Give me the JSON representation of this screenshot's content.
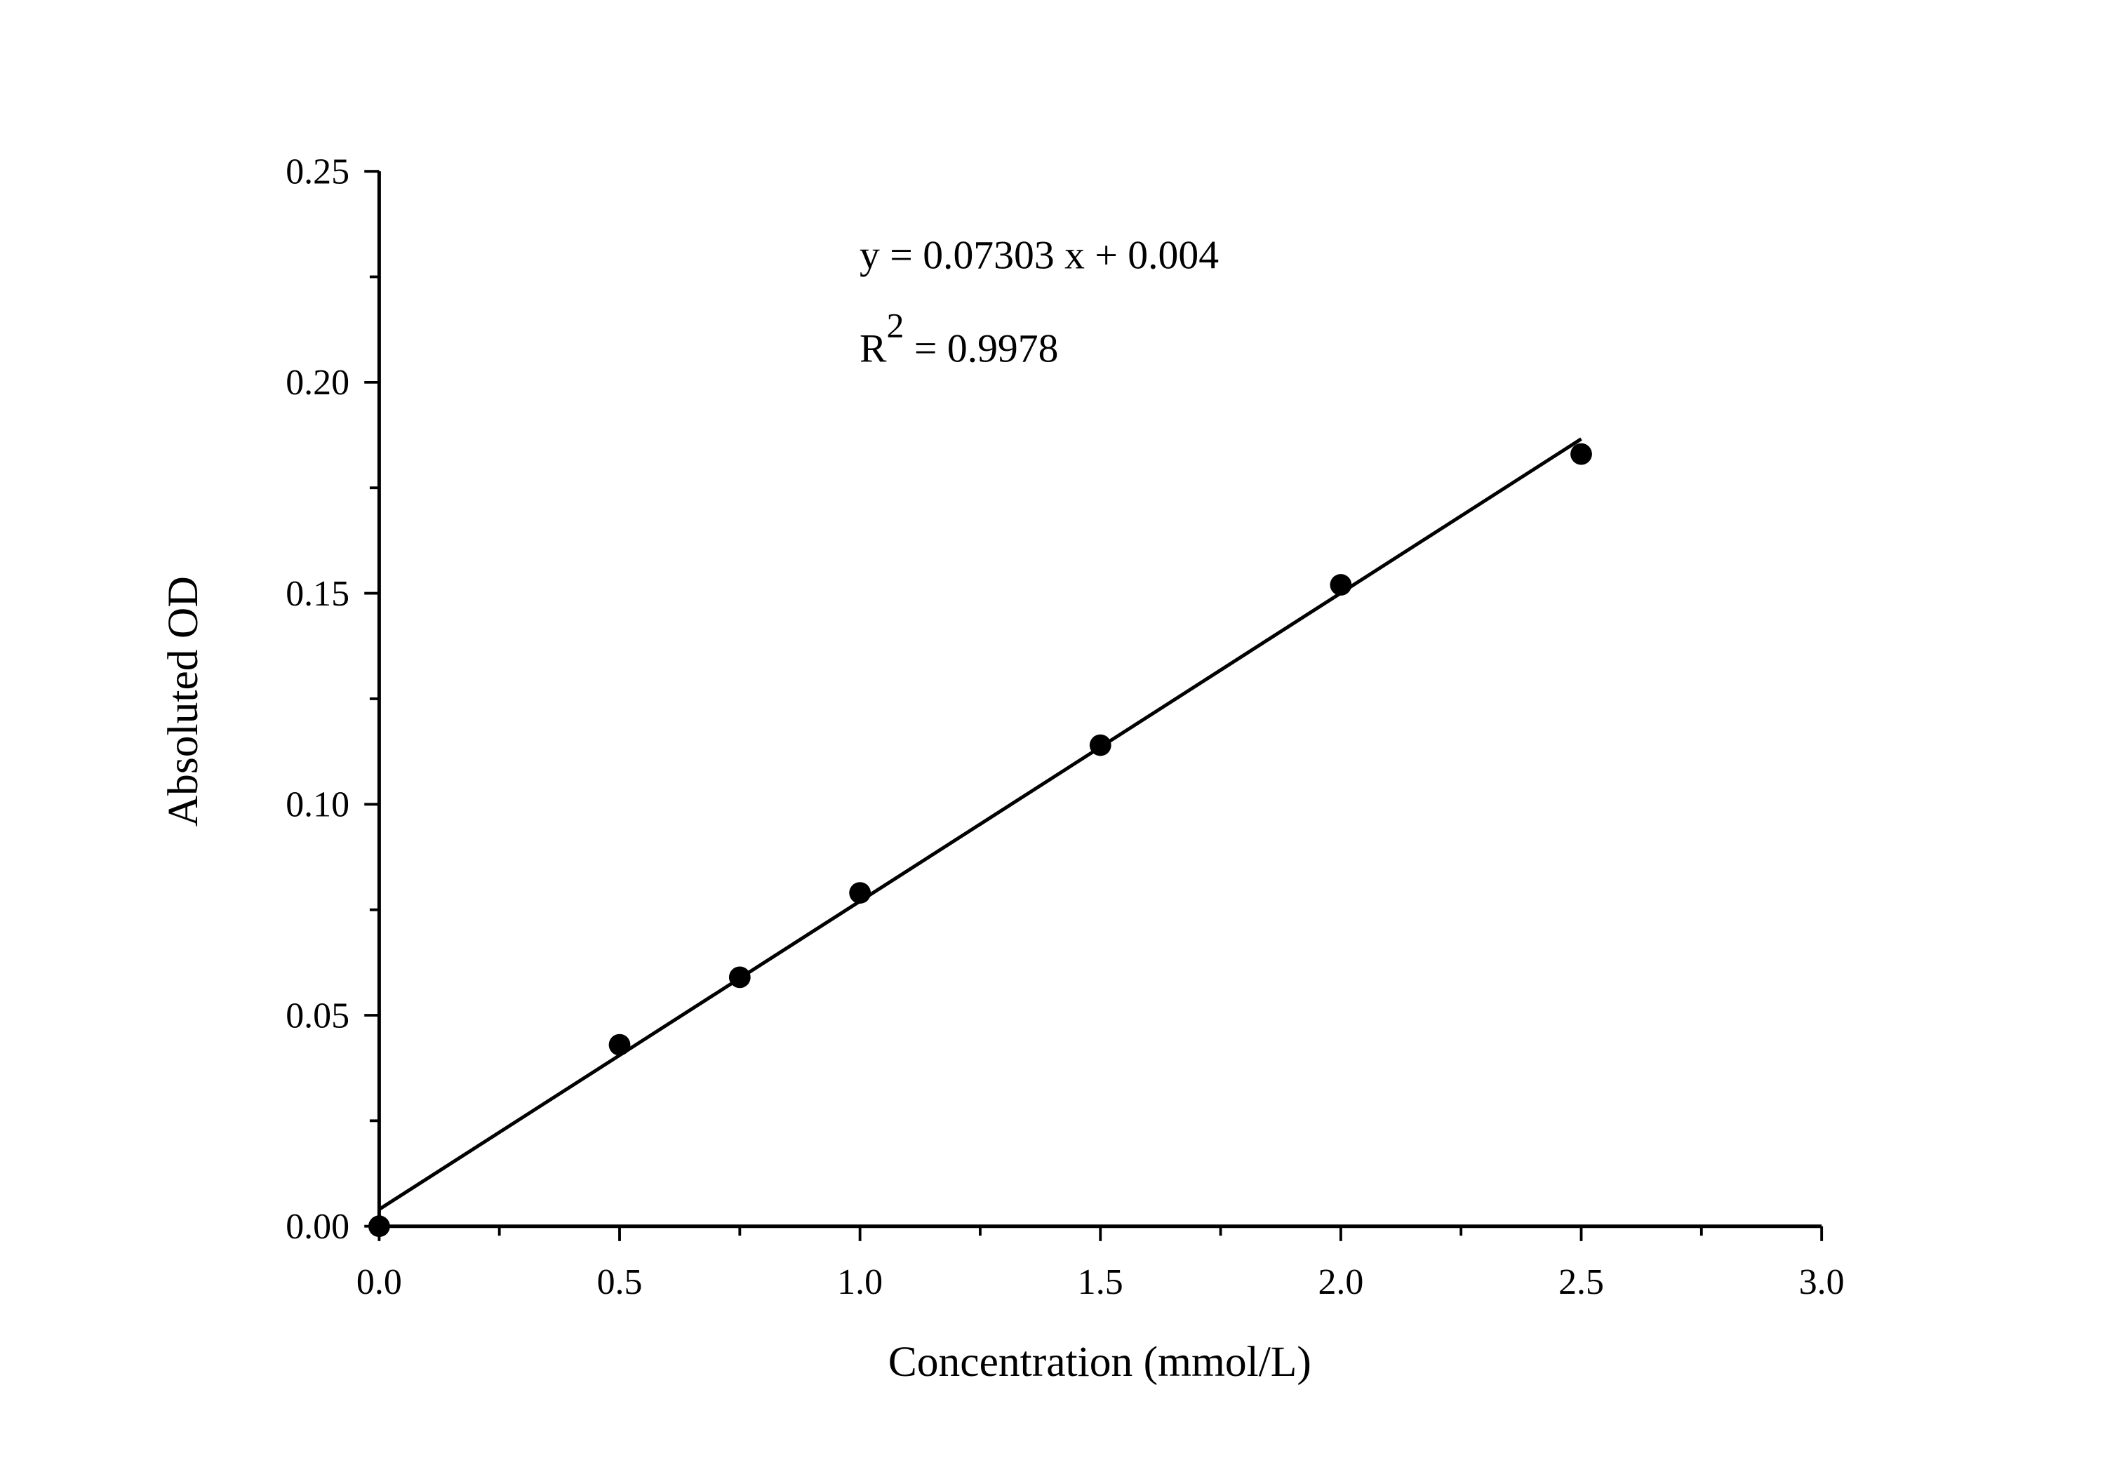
{
  "chart_data": {
    "type": "scatter",
    "title": "",
    "xlabel": "Concentration (mmol/L)",
    "ylabel": "Absoluted OD",
    "xlim": [
      0,
      3.0
    ],
    "ylim": [
      0,
      0.25
    ],
    "x_ticks": [
      "0.0",
      "0.5",
      "1.0",
      "1.5",
      "2.0",
      "2.5",
      "3.0"
    ],
    "y_ticks": [
      "0.00",
      "0.05",
      "0.10",
      "0.15",
      "0.20",
      "0.25"
    ],
    "grid": false,
    "legend": "none",
    "series": [
      {
        "x": [
          0,
          0.5,
          0.75,
          1.0,
          1.5,
          2.0,
          2.5
        ],
        "y": [
          0.0,
          0.043,
          0.059,
          0.079,
          0.114,
          0.152,
          0.183
        ],
        "marker": "filled-circle",
        "color": "#000000"
      }
    ],
    "fit": {
      "type": "linear",
      "slope": 0.07303,
      "intercept": 0.004,
      "x_range": [
        0,
        2.5
      ],
      "color": "#000000"
    },
    "annotations": {
      "equation": "y = 0.07303 x + 0.004",
      "r2_prefix": "R",
      "r2_sup": "2",
      "r2_value": " = 0.9978"
    }
  }
}
